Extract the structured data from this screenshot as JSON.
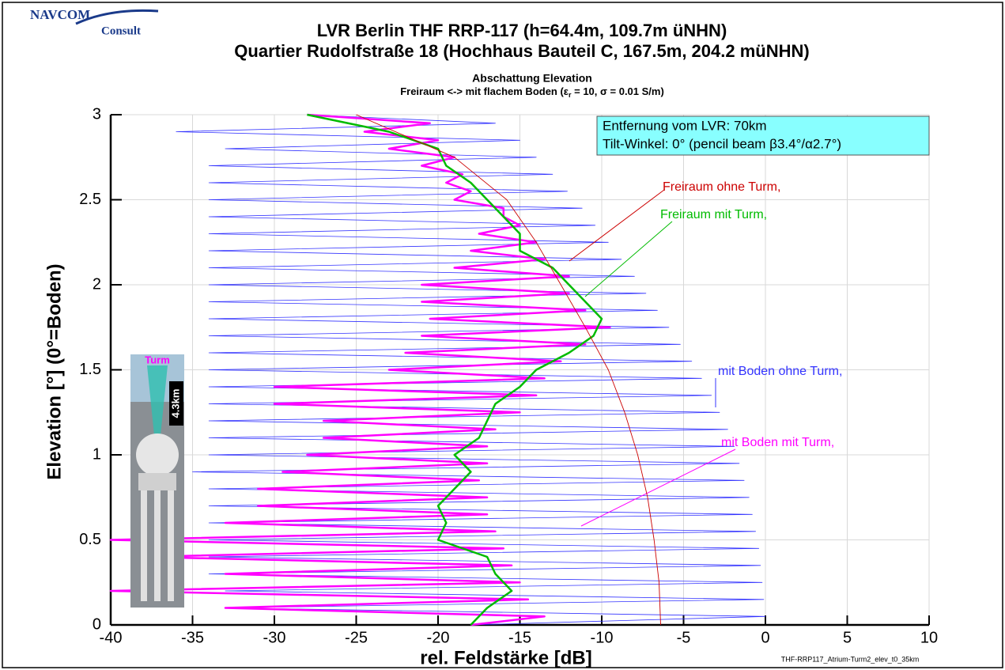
{
  "chart_data": {
    "type": "line",
    "title": "LVR  Berlin THF RRP-117 (h=64.4m, 109.7m üNHN)",
    "title2": "Quartier Rudolfstraße 18 (Hochhaus Bauteil C, 167.5m, 204.2 müNHN)",
    "subtitle": "Abschattung Elevation",
    "subtitle2_parts": [
      "Freiraum <-> mit flachem Boden (ε",
      "r",
      " = 10,  σ = 0.01 S/m)"
    ],
    "x_label": "rel. Feldstärke [dB]",
    "y_label": "Elevation [°] (0°=Boden)",
    "info_box": [
      "Entfernung vom LVR: 70km",
      "Tilt-Winkel: 0° (pencil beam β3.4°/α2.7°)"
    ],
    "logo": [
      "NAVCOM",
      "Consult"
    ],
    "inset_labels": [
      "Turm",
      "4.3km"
    ],
    "footer": "THF-RRP117_Atrium-Turm2_elev_t0_35km",
    "xlim": [
      -40,
      10
    ],
    "ylim": [
      0,
      3
    ],
    "xticks": [
      -40,
      -35,
      -30,
      -25,
      -20,
      -15,
      -10,
      -5,
      0,
      5,
      10
    ],
    "yticks": [
      0,
      0.5,
      1,
      1.5,
      2,
      2.5,
      3
    ],
    "grid": true,
    "series": [
      {
        "name": "mit Boden ohne Turm,",
        "color": "#3333ff",
        "x": [
          -18,
          0,
          -33,
          -0.1,
          -33,
          -0.2,
          -34,
          -0.3,
          -34,
          -0.4,
          -34,
          -0.6,
          -34,
          -0.8,
          -34,
          -1.0,
          -34,
          -1.3,
          -35,
          -1.6,
          -34,
          -1.9,
          -34,
          -2.3,
          -34,
          -2.8,
          -34,
          -3.3,
          -34,
          -3.9,
          -34,
          -4.5,
          -34,
          -5.2,
          -34,
          -5.9,
          -34,
          -6.6,
          -34,
          -7.3,
          -34,
          -8.0,
          -34,
          -8.8,
          -34,
          -9.6,
          -34,
          -10.4,
          -34,
          -11.2,
          -34,
          -12.1,
          -34,
          -13.0,
          -34,
          -14.0,
          -33,
          -15.0,
          -36,
          -16.5,
          -28
        ],
        "y": [
          0,
          0.05,
          0.1,
          0.15,
          0.2,
          0.25,
          0.3,
          0.35,
          0.4,
          0.45,
          0.5,
          0.55,
          0.6,
          0.65,
          0.7,
          0.75,
          0.8,
          0.85,
          0.9,
          0.95,
          1.0,
          1.05,
          1.1,
          1.15,
          1.2,
          1.25,
          1.3,
          1.35,
          1.4,
          1.45,
          1.5,
          1.55,
          1.6,
          1.65,
          1.7,
          1.75,
          1.8,
          1.85,
          1.9,
          1.95,
          2.0,
          2.05,
          2.1,
          2.15,
          2.2,
          2.25,
          2.3,
          2.35,
          2.4,
          2.45,
          2.5,
          2.55,
          2.6,
          2.65,
          2.7,
          2.75,
          2.8,
          2.85,
          2.9,
          2.95,
          3.0
        ]
      },
      {
        "name": "mit Boden mit Turm,",
        "color": "#ff00ff",
        "x": [
          -18,
          -13.5,
          -33,
          -14.5,
          -40,
          -15,
          -33,
          -15.5,
          -38,
          -16,
          -40,
          -16.5,
          -33,
          -17,
          -31,
          -17,
          -31,
          -17.5,
          -29.5,
          -17,
          -28,
          -17,
          -27,
          -16.5,
          -27,
          -15,
          -30,
          -14,
          -30,
          -13.5,
          -23,
          -12.5,
          -22,
          -11,
          -21,
          -9.5,
          -20.5,
          -11,
          -21,
          -12,
          -21,
          -12,
          -19,
          -13.5,
          -18,
          -14,
          -17.5,
          -15,
          -16,
          -16,
          -19,
          -18,
          -19.5,
          -18.5,
          -21,
          -19,
          -23,
          -20,
          -24.5,
          -20.5,
          -28
        ],
        "y": [
          0,
          0.05,
          0.1,
          0.15,
          0.2,
          0.25,
          0.3,
          0.35,
          0.4,
          0.45,
          0.5,
          0.55,
          0.6,
          0.65,
          0.7,
          0.75,
          0.8,
          0.85,
          0.9,
          0.95,
          1.0,
          1.05,
          1.1,
          1.15,
          1.2,
          1.25,
          1.3,
          1.35,
          1.4,
          1.45,
          1.5,
          1.55,
          1.6,
          1.65,
          1.7,
          1.75,
          1.8,
          1.85,
          1.9,
          1.95,
          2.0,
          2.05,
          2.1,
          2.15,
          2.2,
          2.25,
          2.3,
          2.35,
          2.4,
          2.45,
          2.5,
          2.55,
          2.6,
          2.65,
          2.7,
          2.75,
          2.8,
          2.85,
          2.9,
          2.95,
          3.0
        ]
      },
      {
        "name": "Freiraum mit Turm,",
        "color": "#00bb00",
        "x": [
          -18,
          -17,
          -15.5,
          -16.5,
          -17,
          -20,
          -19.5,
          -20,
          -19,
          -18,
          -19,
          -17.5,
          -17,
          -16.5,
          -15,
          -14,
          -12,
          -10.5,
          -10,
          -11,
          -12,
          -13,
          -15,
          -15,
          -16,
          -17,
          -18,
          -19.5,
          -20,
          -23,
          -28
        ],
        "y": [
          0,
          0.1,
          0.2,
          0.3,
          0.4,
          0.5,
          0.6,
          0.7,
          0.8,
          0.9,
          1.0,
          1.1,
          1.2,
          1.3,
          1.4,
          1.5,
          1.6,
          1.7,
          1.8,
          1.9,
          2.0,
          2.1,
          2.2,
          2.3,
          2.4,
          2.5,
          2.6,
          2.7,
          2.8,
          2.9,
          3.0
        ]
      },
      {
        "name": "Freiraum ohne Turm,",
        "color": "#cc0000",
        "x": [
          -6.4,
          -6.5,
          -6.8,
          -7.2,
          -7.8,
          -8.6,
          -9.6,
          -11,
          -12.5,
          -14,
          -15.8,
          -19,
          -25
        ],
        "y": [
          0,
          0.25,
          0.5,
          0.75,
          1.0,
          1.25,
          1.5,
          1.75,
          2.0,
          2.25,
          2.5,
          2.75,
          3.0
        ]
      }
    ]
  }
}
